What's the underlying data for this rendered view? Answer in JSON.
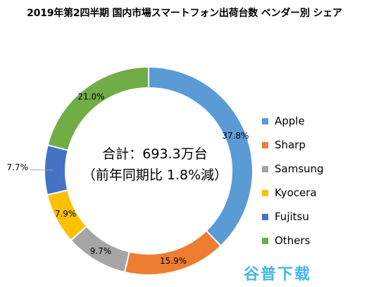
{
  "chart_data": {
    "type": "pie",
    "variant": "donut",
    "title": "2019年第2四半期 国内市場スマートフォン出荷台数 ベンダー別 シェア",
    "center_text": [
      "合計：693.3万台",
      "（前年同期比 1.8%減）"
    ],
    "legend_position": "right",
    "slices": [
      {
        "name": "Apple",
        "value": 37.8,
        "label": "37.8%",
        "color": "#5b9bd5"
      },
      {
        "name": "Sharp",
        "value": 15.9,
        "label": "15.9%",
        "color": "#ed7d31"
      },
      {
        "name": "Samsung",
        "value": 9.7,
        "label": "9.7%",
        "color": "#a5a5a5"
      },
      {
        "name": "Kyocera",
        "value": 7.9,
        "label": "7.9%",
        "color": "#ffc000"
      },
      {
        "name": "Fujitsu",
        "value": 7.7,
        "label": "7.7%",
        "color": "#4472c4"
      },
      {
        "name": "Others",
        "value": 21.0,
        "label": "21.0%",
        "color": "#70ad47"
      }
    ]
  },
  "watermark": "谷普下载"
}
